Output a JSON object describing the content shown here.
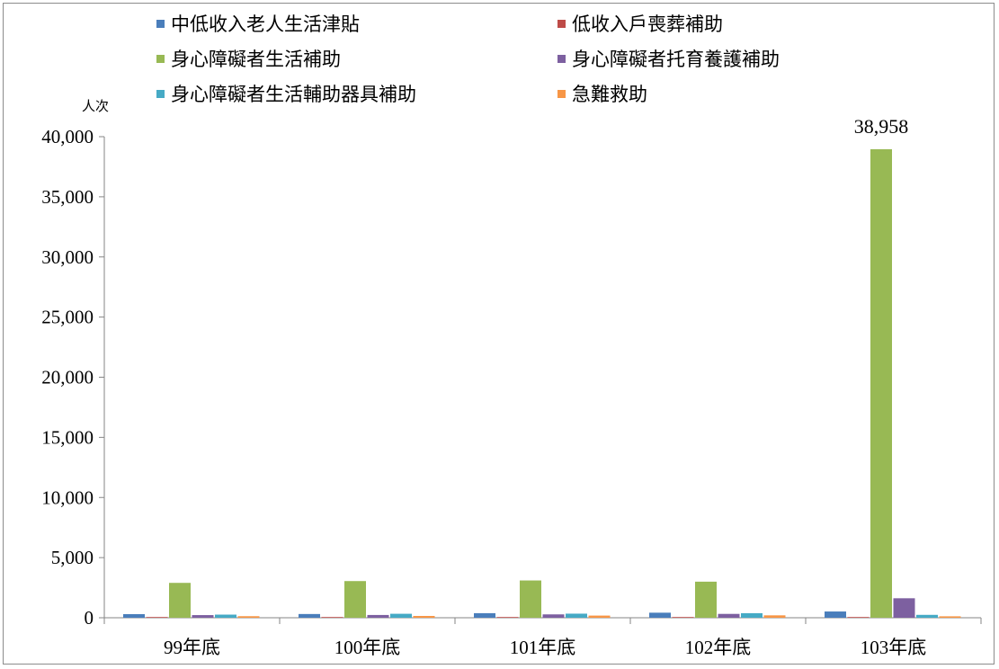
{
  "chart_data": {
    "type": "bar",
    "title": "",
    "ylabel": "人次",
    "xlabel": "",
    "ylim": [
      0,
      40000
    ],
    "yticks": [
      "0",
      "5,000",
      "10,000",
      "15,000",
      "20,000",
      "25,000",
      "30,000",
      "35,000",
      "40,000"
    ],
    "categories": [
      "99年底",
      "100年底",
      "101年底",
      "102年底",
      "103年底"
    ],
    "legend_position": "top",
    "grid": false,
    "series": [
      {
        "name": "中低收入老人生活津貼",
        "color": "#4a7ebb",
        "values": [
          300,
          310,
          380,
          420,
          520
        ]
      },
      {
        "name": "低收入戶喪葬補助",
        "color": "#be4b48",
        "values": [
          10,
          10,
          12,
          14,
          15
        ]
      },
      {
        "name": "身心障礙者生活補助",
        "color": "#98b954",
        "values": [
          2900,
          3050,
          3100,
          3000,
          38958
        ]
      },
      {
        "name": "身心障礙者托育養護補助",
        "color": "#7d60a0",
        "values": [
          220,
          230,
          280,
          320,
          1620
        ]
      },
      {
        "name": "身心障礙者生活輔助器具補助",
        "color": "#46aac5",
        "values": [
          260,
          330,
          340,
          380,
          240
        ]
      },
      {
        "name": "急難救助",
        "color": "#f79646",
        "values": [
          130,
          150,
          180,
          200,
          120
        ]
      }
    ],
    "data_labels": [
      {
        "series": 2,
        "category": 4,
        "text": "38,958"
      }
    ]
  }
}
